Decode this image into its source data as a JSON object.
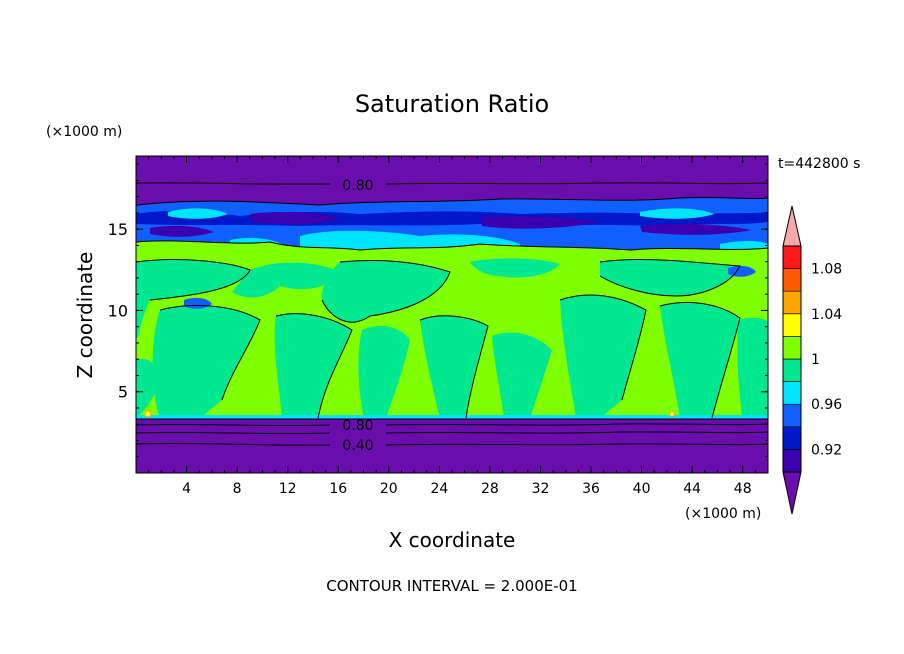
{
  "chart_data": {
    "type": "heatmap",
    "title": "Saturation Ratio",
    "time_label": "t=442800 s",
    "xlabel": "X coordinate",
    "ylabel": "Z coordinate",
    "x_unit": "(×1000 m)",
    "y_unit": "(×1000 m)",
    "footer": "CONTOUR INTERVAL = 2.000E-01",
    "xlim": [
      0,
      50
    ],
    "ylim": [
      0,
      19.5
    ],
    "x_ticks": [
      "4",
      "8",
      "12",
      "16",
      "20",
      "24",
      "28",
      "32",
      "36",
      "40",
      "44",
      "48"
    ],
    "y_ticks": [
      "5",
      "10",
      "15"
    ],
    "contour_labels": [
      "0.80",
      "0.80",
      "0.40"
    ],
    "colorbar": {
      "tick_labels": [
        "1.08",
        "1.04",
        "1",
        "0.96",
        "0.92"
      ],
      "levels": [
        0.9,
        0.92,
        0.94,
        0.96,
        0.98,
        1.0,
        1.02,
        1.04,
        1.06,
        1.08,
        1.1
      ],
      "colors": [
        "#6a0dad",
        "#3a00b0",
        "#0018c8",
        "#1060ff",
        "#00e5ff",
        "#00e890",
        "#80ff00",
        "#ffff00",
        "#ffa500",
        "#ff5a00",
        "#ff1a1a",
        "#f8a8a8"
      ]
    }
  }
}
